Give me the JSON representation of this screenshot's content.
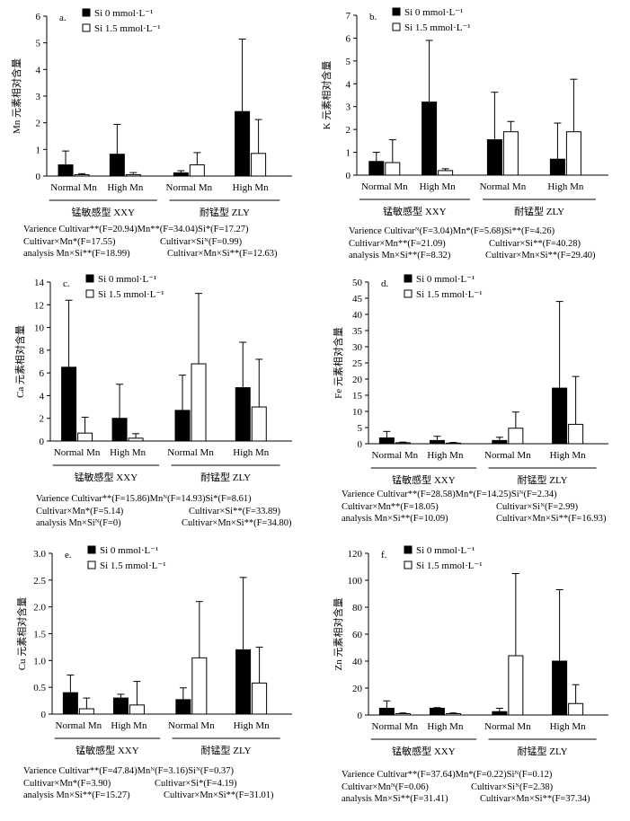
{
  "chart_data": [
    {
      "type": "bar",
      "panel_label": "a.",
      "ylabel": "Mn 元素相对含量",
      "ylim": [
        0,
        6
      ],
      "yticks": [
        "0",
        "1",
        "2",
        "3",
        "4",
        "5",
        "6"
      ],
      "categories": [
        "Normal Mn",
        "High Mn",
        "Normal Mn",
        "High Mn"
      ],
      "groups": [
        "锰敏感型 XXY",
        "耐锰型 ZLY"
      ],
      "series": [
        {
          "name": "Si 0 mmol·L⁻¹",
          "color": "#000000",
          "values": [
            0.42,
            0.82,
            0.12,
            2.42
          ],
          "errors": [
            0.52,
            1.12,
            0.08,
            2.72
          ]
        },
        {
          "name": "Si 1.5 mmol·L⁻¹",
          "color": "#ffffff",
          "values": [
            0.05,
            0.05,
            0.42,
            0.85
          ],
          "errors": [
            0.04,
            0.08,
            0.46,
            1.27
          ]
        }
      ],
      "stats": [
        [
          "Varience Cultivar**(F=20.94)Mn**(F=34.04)Si*(F=17.27)"
        ],
        [
          "Cultivar×Mn*(F=17.55)",
          "Cultivar×Siᴺ(F=0.99)"
        ],
        [
          "analysis Mn×Si**(F=18.99)",
          "Cultivar×Mn×Si**(F=12.63)"
        ]
      ]
    },
    {
      "type": "bar",
      "panel_label": "b.",
      "ylabel": "K 元素相对含量",
      "ylim": [
        0,
        7
      ],
      "yticks": [
        "0",
        "1",
        "2",
        "3",
        "4",
        "5",
        "6",
        "7"
      ],
      "categories": [
        "Normal Mn",
        "High Mn",
        "Normal Mn",
        "High Mn"
      ],
      "groups": [
        "锰敏感型 XXY",
        "耐锰型 ZLY"
      ],
      "series": [
        {
          "name": "Si 0 mmol·L⁻¹",
          "color": "#000000",
          "values": [
            0.6,
            3.2,
            1.55,
            0.7
          ],
          "errors": [
            0.4,
            2.7,
            2.08,
            1.58
          ]
        },
        {
          "name": "Si 1.5 mmol·L⁻¹",
          "color": "#ffffff",
          "values": [
            0.55,
            0.2,
            1.9,
            1.9
          ],
          "errors": [
            1.0,
            0.08,
            0.45,
            2.3
          ]
        }
      ],
      "stats": [
        [
          "Varience Cultivarᴺ(F=3.04)Mn*(F=5.68)Si**(F=4.26)"
        ],
        [
          "Cultivar×Mn**(F=21.09)",
          "Cultivar×Si**(F=40.28)"
        ],
        [
          "analysis Mn×Si**(F=8.32)",
          "Cultivar×Mn×Si**(F=29.40)"
        ]
      ]
    },
    {
      "type": "bar",
      "panel_label": "c.",
      "ylabel": "Ca 元素相对含量",
      "ylim": [
        0,
        14
      ],
      "yticks": [
        "0",
        "2",
        "4",
        "6",
        "8",
        "10",
        "12",
        "14"
      ],
      "categories": [
        "Normal Mn",
        "High Mn",
        "Normal Mn",
        "High Mn"
      ],
      "groups": [
        "锰敏感型 XXY",
        "耐锰型 ZLY"
      ],
      "series": [
        {
          "name": "Si 0 mmol·L⁻¹",
          "color": "#000000",
          "values": [
            6.5,
            2.0,
            2.7,
            4.7
          ],
          "errors": [
            5.9,
            3.0,
            3.1,
            4.0
          ]
        },
        {
          "name": "Si 1.5 mmol·L⁻¹",
          "color": "#ffffff",
          "values": [
            0.7,
            0.25,
            6.8,
            3.0
          ],
          "errors": [
            1.4,
            0.4,
            6.2,
            4.2
          ]
        }
      ],
      "stats": [
        [
          "Varience Cultivar**(F=15.86)Mnᴺ(F=14.93)Si*(F=8.61)"
        ],
        [
          "Cultivar×Mn*(F=5.14)",
          "Cultivar×Si**(F=33.89)"
        ],
        [
          "analysis Mn×Siᴺ(F=0)",
          "Cultivar×Mn×Si**(F=34.80)"
        ]
      ]
    },
    {
      "type": "bar",
      "panel_label": "d.",
      "ylabel": "Fe 元素相对含量",
      "ylim": [
        0,
        50
      ],
      "yticks": [
        "0",
        "5",
        "10",
        "15",
        "20",
        "25",
        "30",
        "35",
        "40",
        "45",
        "50"
      ],
      "categories": [
        "Normal Mn",
        "High Mn",
        "Normal Mn",
        "High Mn"
      ],
      "groups": [
        "锰敏感型 XXY",
        "耐锰型 ZLY"
      ],
      "series": [
        {
          "name": "Si 0 mmol·L⁻¹",
          "color": "#000000",
          "values": [
            1.8,
            1.0,
            1.0,
            17.2
          ],
          "errors": [
            2.0,
            1.3,
            1.0,
            26.8
          ]
        },
        {
          "name": "Si 1.5 mmol·L⁻¹",
          "color": "#ffffff",
          "values": [
            0.3,
            0.2,
            4.8,
            6.0
          ],
          "errors": [
            0.2,
            0.2,
            5.0,
            14.8
          ]
        }
      ],
      "stats": [
        [
          "Varience Cultivar**(F=28.58)Mn*(F=14.25)Siᴺ(F=2.34)"
        ],
        [
          "Cultivar×Mn**(F=18.05)",
          "Cultivar×Siᴺ(F=2.99)"
        ],
        [
          "analysis Mn×Si**(F=10.09)",
          "Cultivar×Mn×Si**(F=16.93)"
        ]
      ]
    },
    {
      "type": "bar",
      "panel_label": "e.",
      "ylabel": "Cu 元素相对含量",
      "ylim": [
        0,
        3.0
      ],
      "yticks": [
        "0",
        "0.5",
        "1.0",
        "1.5",
        "2.0",
        "2.5",
        "3.0"
      ],
      "categories": [
        "Normal Mn",
        "High Mn",
        "Normal Mn",
        "High Mn"
      ],
      "groups": [
        "锰敏感型 XXY",
        "耐锰型 ZLY"
      ],
      "series": [
        {
          "name": "Si 0 mmol·L⁻¹",
          "color": "#000000",
          "values": [
            0.4,
            0.3,
            0.27,
            1.2
          ],
          "errors": [
            0.33,
            0.07,
            0.22,
            1.35
          ]
        },
        {
          "name": "Si 1.5 mmol·L⁻¹",
          "color": "#ffffff",
          "values": [
            0.1,
            0.17,
            1.05,
            0.58
          ],
          "errors": [
            0.2,
            0.44,
            1.05,
            0.67
          ]
        }
      ],
      "stats": [
        [
          "Varience Cultivar**(F=47.84)Mnᴺ(F=3.16)Siᴺ(F=0.37)"
        ],
        [
          "Cultivar×Mn*(F=3.90)",
          "Cultivar×Si*(F=4.19)"
        ],
        [
          "analysis Mn×Si**(F=15.27)",
          "Cultivar×Mn×Si**(F=31.01)"
        ]
      ]
    },
    {
      "type": "bar",
      "panel_label": "f.",
      "ylabel": "Zn 元素相对含量",
      "ylim": [
        0,
        120
      ],
      "yticks": [
        "0",
        "20",
        "40",
        "60",
        "80",
        "100",
        "120"
      ],
      "categories": [
        "Normal Mn",
        "High Mn",
        "Normal Mn",
        "High Mn"
      ],
      "groups": [
        "锰敏感型 XXY",
        "耐锰型 ZLY"
      ],
      "series": [
        {
          "name": "Si 0 mmol·L⁻¹",
          "color": "#000000",
          "values": [
            5.0,
            5.0,
            2.5,
            40.0
          ],
          "errors": [
            5.5,
            0.5,
            2.5,
            53.0
          ]
        },
        {
          "name": "Si 1.5 mmol·L⁻¹",
          "color": "#ffffff",
          "values": [
            1.0,
            1.0,
            44.0,
            8.5
          ],
          "errors": [
            0.5,
            0.5,
            61.0,
            14.0
          ]
        }
      ],
      "stats": [
        [
          "Varience Cultivar**(F=37.64)Mn*(F=0.22)Siᴺ(F=0.12)"
        ],
        [
          "Cultivar×Mnᴺ(F=0.06)",
          "Cultivar×Siᴺ(F=2.38)"
        ],
        [
          "analysis Mn×Si**(F=31.41)",
          "Cultivar×Mn×Si**(F=37.34)"
        ]
      ]
    }
  ]
}
